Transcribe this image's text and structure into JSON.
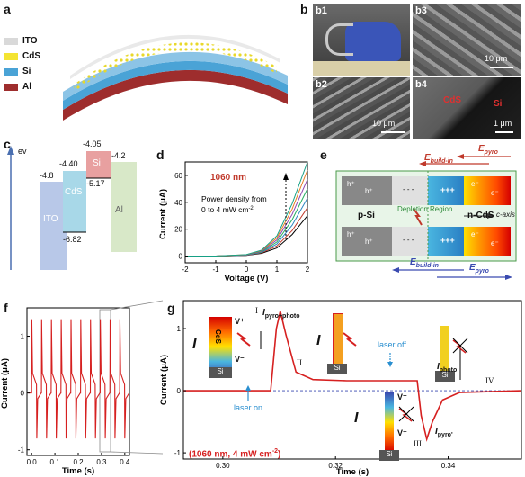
{
  "panels": {
    "a": {
      "label": "a",
      "legend": [
        {
          "name": "ITO",
          "color": "#d9d9d9"
        },
        {
          "name": "CdS",
          "color": "#f4e432"
        },
        {
          "name": "Si",
          "color": "#4aa3d6"
        },
        {
          "name": "Al",
          "color": "#9e2d2d"
        }
      ]
    },
    "b": {
      "label": "b",
      "sub": [
        {
          "label": "b1"
        },
        {
          "label": "b2",
          "scale": "10 μm"
        },
        {
          "label": "b3",
          "scale": "10 μm"
        },
        {
          "label": "b4",
          "scale": "1 μm",
          "cds": "CdS",
          "si": "Si"
        }
      ]
    },
    "c": {
      "label": "c",
      "axis": "ev",
      "levels": [
        {
          "material": "ITO",
          "top": "-4.8",
          "color": "#b8c8e8"
        },
        {
          "material": "CdS",
          "top": "-4.40",
          "bottom": "-6.82",
          "color": "#a8d8e8"
        },
        {
          "material": "Si",
          "top": "-4.05",
          "bottom": "-5.17",
          "color": "#e8a0a0"
        },
        {
          "material": "Al",
          "top": "-4.2",
          "color": "#d8e8c8"
        }
      ]
    },
    "d": {
      "label": "d",
      "wavelength": "1060 nm",
      "annotation_line1": "Power density from",
      "annotation_line2": "0 to 4 mW cm",
      "annotation_sup": "-2",
      "xlabel": "Voltage (V)",
      "ylabel": "Current (μA)",
      "xticks": [
        "-2",
        "-1",
        "0",
        "1",
        "2"
      ],
      "yticks": [
        "0",
        "20",
        "40",
        "60"
      ]
    },
    "e": {
      "label": "e",
      "e_buildin_top": "E",
      "e_buildin_top_sub": "build-in",
      "e_pyro_top": "E",
      "e_pyro_top_sub": "pyro",
      "e_buildin_bot": "E",
      "e_buildin_bot_sub": "build-in",
      "e_pyro_bot": "E",
      "e_pyro_bot_sub": "pyro",
      "psi": "p-Si",
      "ncds": "n-CdS",
      "depletion": "Depletion Region",
      "caxis": "c-axis",
      "hplus": "h⁺",
      "eminus": "e⁻",
      "plus3": "+++",
      "minus": "−",
      "dashes": "- - -"
    },
    "f": {
      "label": "f",
      "xlabel": "Time (s)",
      "ylabel": "Current (μA)",
      "xticks": [
        "0.0",
        "0.1",
        "0.2",
        "0.3",
        "0.4"
      ],
      "yticks": [
        "1",
        "0",
        "-1"
      ]
    },
    "g": {
      "label": "g",
      "xlabel": "Time (s)",
      "ylabel": "Current (μA)",
      "xticks": [
        "0.30",
        "0.32",
        "0.34"
      ],
      "yticks": [
        "1",
        "0",
        "-1"
      ],
      "note": "(1060 nm, 4 mW cm",
      "note_sup": "-2",
      "note_end": ")",
      "roman": [
        "I",
        "II",
        "III",
        "IV"
      ],
      "i_pyro_photo": "pyro+photo",
      "i_photo": "photo",
      "i_pyro_neg": "pyro'",
      "laser_on": "laser on",
      "laser_off": "laser off",
      "cds": "CdS",
      "si": "Si",
      "vplus": "V⁺",
      "vminus": "V⁻",
      "I": "I"
    }
  },
  "chart_data": [
    {
      "type": "line",
      "panel": "d",
      "xlabel": "Voltage (V)",
      "ylabel": "Current (μA)",
      "xlim": [
        -2,
        2
      ],
      "ylim": [
        -5,
        70
      ],
      "series": [
        {
          "color": "#000000",
          "values": [
            [
              -2,
              0
            ],
            [
              -1,
              0
            ],
            [
              0,
              0.5
            ],
            [
              0.5,
              2
            ],
            [
              1,
              6
            ],
            [
              1.5,
              16
            ],
            [
              2,
              30
            ]
          ]
        },
        {
          "color": "#c0392b",
          "values": [
            [
              -2,
              0
            ],
            [
              -1,
              0
            ],
            [
              0,
              0.6
            ],
            [
              0.5,
              2.4
            ],
            [
              1,
              7.5
            ],
            [
              1.5,
              19
            ],
            [
              2,
              36
            ]
          ]
        },
        {
          "color": "#2e86c1",
          "values": [
            [
              -2,
              0
            ],
            [
              -1,
              0
            ],
            [
              0,
              0.7
            ],
            [
              0.5,
              2.8
            ],
            [
              1,
              9
            ],
            [
              1.5,
              23
            ],
            [
              2,
              43
            ]
          ]
        },
        {
          "color": "#27ae60",
          "values": [
            [
              -2,
              0
            ],
            [
              -1,
              0
            ],
            [
              0,
              0.8
            ],
            [
              0.5,
              3.2
            ],
            [
              1,
              10.5
            ],
            [
              1.5,
              27
            ],
            [
              2,
              50
            ]
          ]
        },
        {
          "color": "#8e44ad",
          "values": [
            [
              -2,
              0
            ],
            [
              -1,
              0
            ],
            [
              0,
              0.9
            ],
            [
              0.5,
              3.6
            ],
            [
              1,
              12
            ],
            [
              1.5,
              31
            ],
            [
              2,
              57
            ]
          ]
        },
        {
          "color": "#e67e22",
          "values": [
            [
              -2,
              0
            ],
            [
              -1,
              0
            ],
            [
              0,
              1
            ],
            [
              0.5,
              4
            ],
            [
              1,
              13.5
            ],
            [
              1.5,
              35
            ],
            [
              2,
              64
            ]
          ]
        },
        {
          "color": "#16a085",
          "values": [
            [
              -2,
              0
            ],
            [
              -1,
              0
            ],
            [
              0,
              1.1
            ],
            [
              0.5,
              4.4
            ],
            [
              1,
              15
            ],
            [
              1.5,
              39
            ],
            [
              2,
              70
            ]
          ]
        }
      ]
    },
    {
      "type": "line",
      "panel": "f",
      "xlabel": "Time (s)",
      "ylabel": "Current (μA)",
      "xlim": [
        -0.02,
        0.42
      ],
      "ylim": [
        -1.1,
        1.5
      ],
      "pulses": 10,
      "period": 0.042,
      "peak": 1.3,
      "plateau": 0.15,
      "trough": -0.8
    },
    {
      "type": "line",
      "panel": "g",
      "xlabel": "Time (s)",
      "ylabel": "Current (μA)",
      "xlim": [
        0.293,
        0.353
      ],
      "ylim": [
        -1.1,
        1.45
      ],
      "values": [
        [
          0.293,
          0
        ],
        [
          0.3085,
          0
        ],
        [
          0.3095,
          1.0
        ],
        [
          0.3102,
          1.28
        ],
        [
          0.3112,
          0.9
        ],
        [
          0.313,
          0.3
        ],
        [
          0.316,
          0.18
        ],
        [
          0.322,
          0.16
        ],
        [
          0.3345,
          0.16
        ],
        [
          0.3352,
          -0.4
        ],
        [
          0.3362,
          -0.78
        ],
        [
          0.3372,
          -0.5
        ],
        [
          0.339,
          -0.15
        ],
        [
          0.342,
          -0.03
        ],
        [
          0.353,
          0
        ]
      ]
    }
  ]
}
